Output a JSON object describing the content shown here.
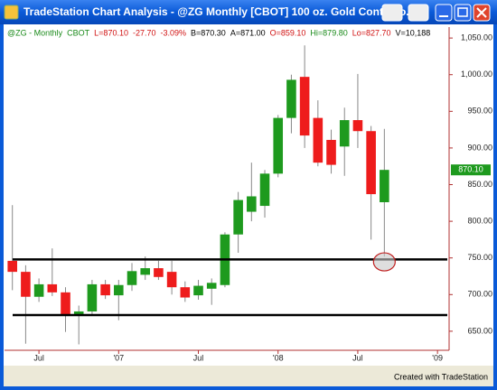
{
  "window_title": "TradeStation Chart Analysis - @ZG  Monthly  [CBOT] 100 oz. Gold Continuo...",
  "footer": "Created with TradeStation",
  "info": [
    {
      "text": "@ZG - Monthly",
      "color": "#1a8a1a"
    },
    {
      "text": "CBOT",
      "color": "#1a8a1a"
    },
    {
      "text": "L=870.10",
      "color": "#d01010"
    },
    {
      "text": "-27.70",
      "color": "#d01010"
    },
    {
      "text": "-3.09%",
      "color": "#d01010"
    },
    {
      "text": "B=870.30",
      "color": "#000000"
    },
    {
      "text": "A=871.00",
      "color": "#000000"
    },
    {
      "text": "O=859.10",
      "color": "#d01010"
    },
    {
      "text": "Hi=879.80",
      "color": "#1a8a1a"
    },
    {
      "text": "Lo=827.70",
      "color": "#d01010"
    },
    {
      "text": "V=10,188",
      "color": "#000000"
    }
  ],
  "chart_data": {
    "type": "candlestick",
    "categories": [
      null,
      null,
      "Jul",
      null,
      null,
      null,
      null,
      null,
      "'07",
      null,
      null,
      null,
      null,
      null,
      "Jul",
      null,
      null,
      null,
      null,
      null,
      "'08",
      null,
      null,
      null,
      null,
      null,
      "Jul",
      null,
      null,
      null,
      null,
      null,
      "'09"
    ],
    "open": [
      746,
      731,
      697,
      714,
      703,
      673,
      677,
      714,
      699,
      713,
      727,
      736,
      731,
      710,
      699,
      708,
      713,
      782,
      813,
      821,
      865,
      941,
      997,
      941,
      911,
      902,
      938,
      923,
      826,
      null,
      null,
      null,
      null
    ],
    "high": [
      822,
      740,
      722,
      763,
      710,
      685,
      720,
      720,
      720,
      743,
      752,
      746,
      746,
      718,
      720,
      722,
      785,
      840,
      880,
      870,
      945,
      1000,
      1040,
      965,
      925,
      955,
      1001,
      930,
      926,
      null,
      null,
      null,
      null
    ],
    "low": [
      706,
      633,
      690,
      698,
      649,
      632,
      672,
      694,
      665,
      705,
      720,
      720,
      700,
      690,
      693,
      686,
      710,
      757,
      800,
      805,
      860,
      920,
      900,
      875,
      865,
      862,
      900,
      775,
      752,
      null,
      null,
      null,
      null
    ],
    "close": [
      731,
      697,
      714,
      703,
      673,
      677,
      714,
      699,
      713,
      732,
      736,
      724,
      710,
      696,
      712,
      716,
      782,
      829,
      834,
      865,
      941,
      993,
      917,
      880,
      877,
      938,
      923,
      837,
      870.1,
      null,
      null,
      null,
      null
    ],
    "up_color": "#1e9a1e",
    "down_color": "#ee1c1c",
    "ylim": [
      624,
      1060
    ],
    "yticks": [
      {
        "value": 650,
        "label": "650.00"
      },
      {
        "value": 700,
        "label": "700.00"
      },
      {
        "value": 750,
        "label": "750.00"
      },
      {
        "value": 800,
        "label": "800.00"
      },
      {
        "value": 850,
        "label": "850.00"
      },
      {
        "value": 900,
        "label": "900.00"
      },
      {
        "value": 950,
        "label": "950.00"
      },
      {
        "value": 1000,
        "label": "1,000.00"
      },
      {
        "value": 1050,
        "label": "1,050.00"
      }
    ],
    "horizontal_lines": [
      748,
      672
    ],
    "last_price": {
      "value": 870.1,
      "label": "870.10",
      "color": "#1e9a1e"
    }
  }
}
